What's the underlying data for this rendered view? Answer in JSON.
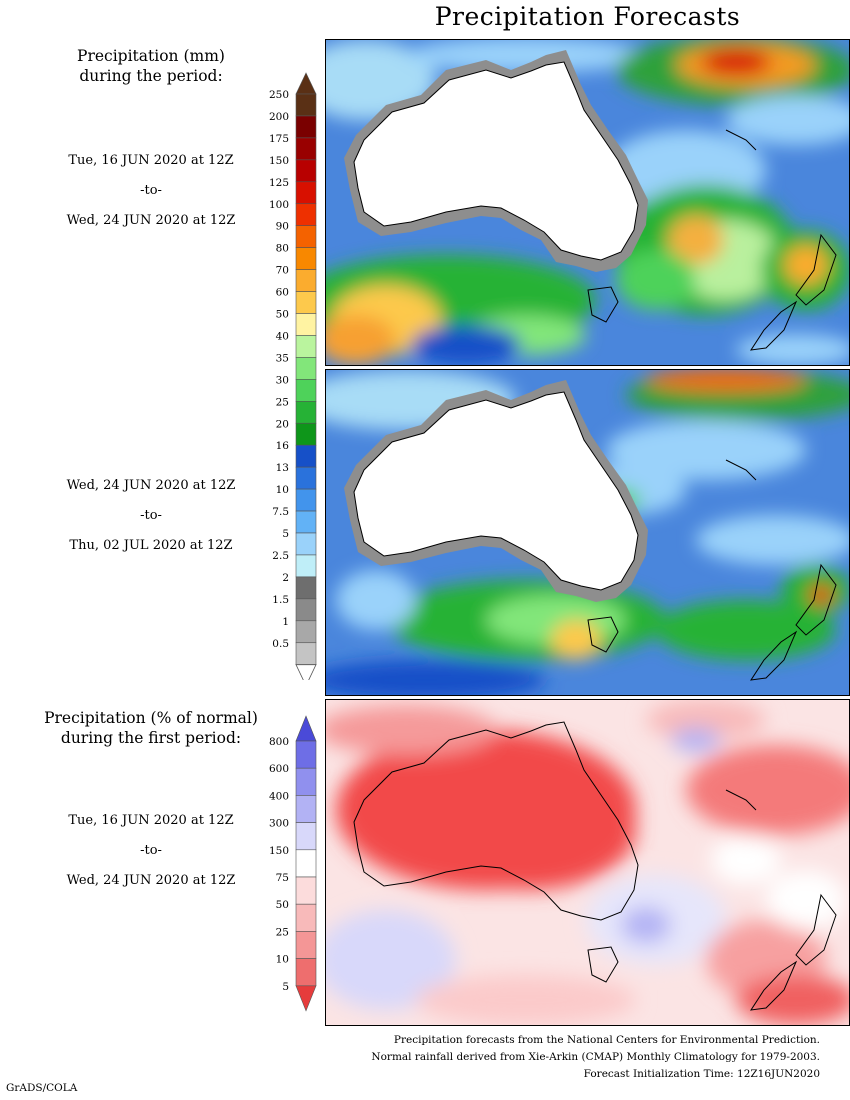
{
  "title": "Precipitation Forecasts",
  "amount_section": {
    "heading_line1": "Precipitation (mm)",
    "heading_line2": "during the period:",
    "labels": [
      "250",
      "200",
      "175",
      "150",
      "125",
      "100",
      "90",
      "80",
      "70",
      "60",
      "50",
      "40",
      "35",
      "30",
      "25",
      "20",
      "16",
      "13",
      "10",
      "7.5",
      "5",
      "2.5",
      "2",
      "1.5",
      "1",
      "0.5"
    ],
    "colors": [
      "#5a3015",
      "#7a0000",
      "#990000",
      "#b80000",
      "#d81000",
      "#ee3000",
      "#f46200",
      "#f88800",
      "#fbac2e",
      "#fdc94c",
      "#fff3a2",
      "#baf49e",
      "#82e67a",
      "#4ed25a",
      "#26b236",
      "#0e961a",
      "#1650c8",
      "#2a72dc",
      "#4294ec",
      "#62b2f6",
      "#9ad2fa",
      "#bfeef8",
      "#6e6e6e",
      "#8a8a8a",
      "#a8a8a8",
      "#c4c4c4"
    ],
    "bottom_color": "#ffffff"
  },
  "period1": {
    "start": "Tue, 16 JUN 2020 at 12Z",
    "to": "-to-",
    "end": "Wed, 24 JUN 2020 at 12Z"
  },
  "period2": {
    "start": "Wed, 24 JUN 2020 at 12Z",
    "to": "-to-",
    "end": "Thu, 02 JUL 2020 at 12Z"
  },
  "percent_section": {
    "heading_line1": "Precipitation (% of normal)",
    "heading_line2": "during the first period:",
    "labels": [
      "800",
      "600",
      "400",
      "300",
      "150",
      "75",
      "50",
      "25",
      "10",
      "5"
    ],
    "colors": [
      "#4a4ad8",
      "#6e6ee6",
      "#9090ee",
      "#b2b2f4",
      "#d8d8fa",
      "#ffffff",
      "#fcdcdc",
      "#f8baba",
      "#f49696",
      "#ee6e6e",
      "#e63c3c"
    ]
  },
  "period3": {
    "start": "Tue, 16 JUN 2020 at 12Z",
    "to": "-to-",
    "end": "Wed, 24 JUN 2020 at 12Z"
  },
  "footer": {
    "line1": "Precipitation forecasts from the National Centers for Environmental Prediction.",
    "line2": "Normal rainfall derived from Xie-Arkin (CMAP) Monthly Climatology for 1979-2003.",
    "line3": "Forecast Initialization Time: 12Z16JUN2020"
  },
  "credit": "GrADS/COLA"
}
